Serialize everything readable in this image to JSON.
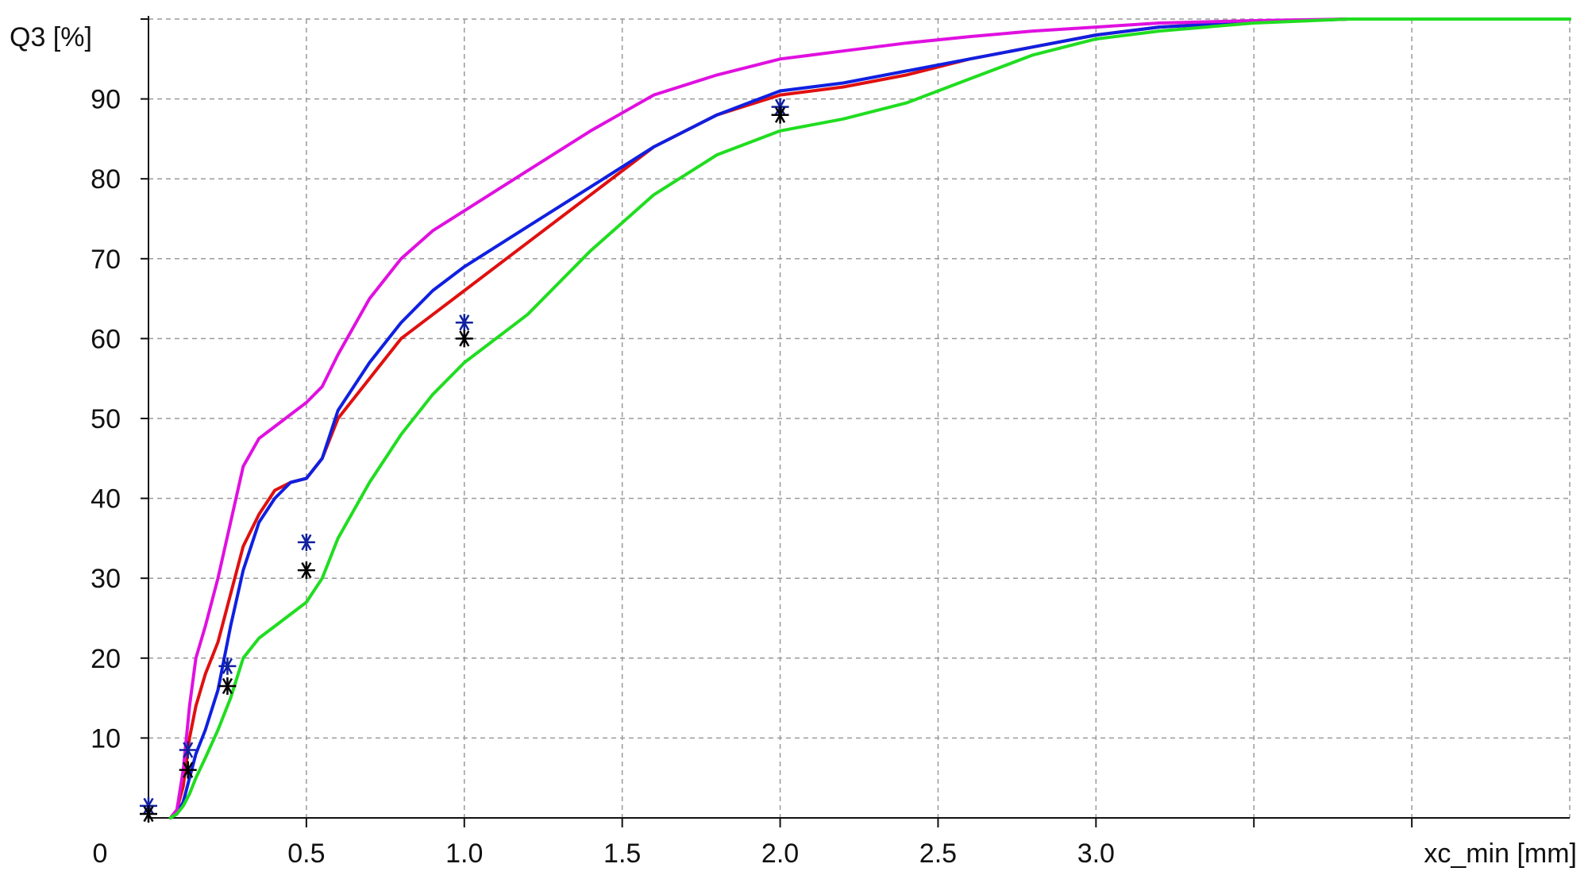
{
  "chart_data": {
    "type": "line",
    "title": "",
    "xlabel": "xc_min [mm]",
    "ylabel": "Q3 [%]",
    "xlim": [
      0,
      4.5
    ],
    "ylim": [
      0,
      100
    ],
    "grid": true,
    "x_tick_labels": [
      {
        "x": 0.5,
        "label": "0.5"
      },
      {
        "x": 1.0,
        "label": "1.0"
      },
      {
        "x": 1.5,
        "label": "1.5"
      },
      {
        "x": 2.0,
        "label": "2.0"
      },
      {
        "x": 2.5,
        "label": "2.5"
      },
      {
        "x": 3.0,
        "label": "3.0"
      }
    ],
    "x_unlabeled_ticks": [
      3.5,
      4.0
    ],
    "x_origin_label": "0",
    "y_ticks": [
      10,
      20,
      30,
      40,
      50,
      60,
      70,
      80,
      90
    ],
    "series": [
      {
        "color": "#e01010",
        "x": [
          0.07,
          0.09,
          0.11,
          0.13,
          0.15,
          0.18,
          0.22,
          0.26,
          0.3,
          0.35,
          0.4,
          0.45,
          0.5,
          0.55,
          0.6,
          0.7,
          0.8,
          0.9,
          1.0,
          1.2,
          1.4,
          1.6,
          1.8,
          2.0,
          2.2,
          2.4,
          2.6,
          2.8,
          3.0,
          3.2,
          3.5,
          3.8,
          4.0
        ],
        "y": [
          0,
          1,
          4,
          10,
          14,
          18,
          22,
          28,
          34,
          38,
          41,
          42,
          42.5,
          45,
          50,
          55,
          60,
          63,
          66,
          72,
          78,
          84,
          88,
          90.5,
          91.5,
          93,
          95,
          96.5,
          98,
          99,
          99.7,
          100,
          100
        ]
      },
      {
        "color": "#1020e0",
        "x": [
          0.07,
          0.09,
          0.11,
          0.13,
          0.15,
          0.18,
          0.22,
          0.26,
          0.3,
          0.35,
          0.4,
          0.45,
          0.5,
          0.55,
          0.6,
          0.7,
          0.8,
          0.9,
          1.0,
          1.2,
          1.4,
          1.6,
          1.8,
          2.0,
          2.2,
          2.4,
          2.6,
          2.8,
          3.0,
          3.2,
          3.5,
          3.8,
          4.0,
          4.2,
          4.5
        ],
        "y": [
          0,
          0.5,
          2,
          5,
          8,
          11,
          16,
          24,
          31,
          37,
          40,
          42,
          42.5,
          45,
          51,
          57,
          62,
          66,
          69,
          74,
          79,
          84,
          88,
          91,
          92,
          93.5,
          95,
          96.5,
          98,
          99,
          99.6,
          100,
          100,
          100,
          100
        ]
      },
      {
        "color": "#e010e0",
        "x": [
          0.07,
          0.09,
          0.11,
          0.13,
          0.15,
          0.18,
          0.22,
          0.26,
          0.3,
          0.35,
          0.4,
          0.45,
          0.5,
          0.55,
          0.6,
          0.7,
          0.8,
          0.9,
          1.0,
          1.2,
          1.4,
          1.6,
          1.8,
          2.0,
          2.2,
          2.4,
          2.6,
          2.8,
          3.0,
          3.2,
          3.5,
          3.8,
          4.0,
          4.2,
          4.5
        ],
        "y": [
          0,
          1,
          6,
          14,
          20,
          24,
          30,
          37,
          44,
          47.5,
          49,
          50.5,
          52,
          54,
          58,
          65,
          70,
          73.5,
          76,
          81,
          86,
          90.5,
          93,
          95,
          96,
          97,
          97.8,
          98.5,
          99,
          99.5,
          99.8,
          100,
          100,
          100,
          100
        ]
      },
      {
        "color": "#20dd20",
        "x": [
          0.07,
          0.09,
          0.11,
          0.13,
          0.15,
          0.18,
          0.22,
          0.26,
          0.3,
          0.35,
          0.4,
          0.45,
          0.5,
          0.55,
          0.6,
          0.7,
          0.8,
          0.9,
          1.0,
          1.2,
          1.4,
          1.6,
          1.8,
          2.0,
          2.2,
          2.4,
          2.6,
          2.8,
          3.0,
          3.2,
          3.5,
          3.8,
          4.0,
          4.2,
          4.5
        ],
        "y": [
          0,
          0.5,
          1.5,
          3,
          5,
          7.5,
          11,
          15,
          20,
          22.5,
          24,
          25.5,
          27,
          30,
          35,
          42,
          48,
          53,
          57,
          63,
          71,
          78,
          83,
          86,
          87.5,
          89.5,
          92.5,
          95.5,
          97.5,
          98.5,
          99.5,
          100,
          100,
          100,
          100
        ]
      }
    ],
    "markers": [
      {
        "color": "#1020a0",
        "x": [
          0.0,
          0.125,
          0.25,
          0.5,
          1.0,
          2.0
        ],
        "y": [
          1.5,
          8.5,
          19,
          34.5,
          62,
          89
        ]
      },
      {
        "color": "#000000",
        "x": [
          0.0,
          0.125,
          0.25,
          0.5,
          1.0,
          2.0
        ],
        "y": [
          0.5,
          6,
          16.5,
          31,
          60,
          88
        ]
      }
    ]
  }
}
